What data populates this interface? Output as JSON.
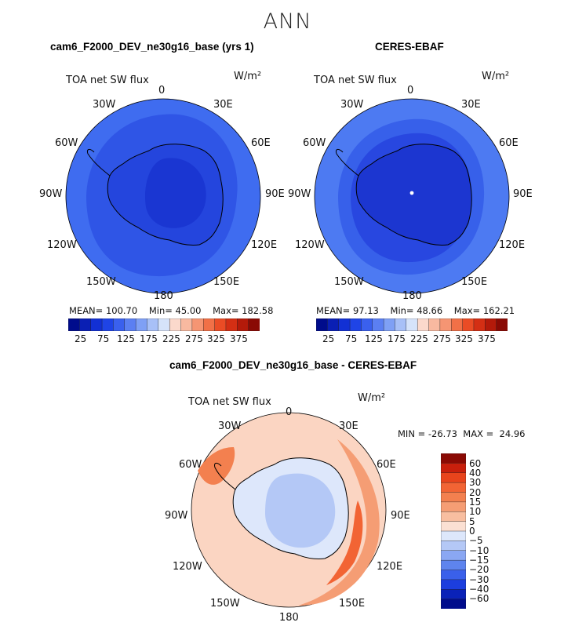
{
  "figure": {
    "season": "ANN"
  },
  "panels": {
    "model": {
      "title": "cam6_F2000_DEV_ne30g16_base (yrs 1)",
      "field_label": "TOA net SW flux",
      "units": "W/m²",
      "stats": {
        "mean_label": "MEAN=",
        "mean": "100.70",
        "min_label": "Min=",
        "min": "45.00",
        "max_label": "Max=",
        "max": "182.58"
      },
      "fill_colors": [
        "#3f6cf0",
        "#2f55e6",
        "#2445dd",
        "#1a36d2"
      ]
    },
    "obs": {
      "title": "CERES-EBAF",
      "field_label": "TOA net SW flux",
      "units": "W/m²",
      "stats": {
        "mean_label": "MEAN=",
        "mean": "97.13",
        "min_label": "Min=",
        "min": "48.66",
        "max_label": "Max=",
        "max": "162.21"
      },
      "fill_colors": [
        "#4d7af2",
        "#3760ea",
        "#2847e0",
        "#1c36d0"
      ]
    },
    "diff": {
      "title": "cam6_F2000_DEV_ne30g16_base - CERES-EBAF",
      "field_label": "TOA net SW flux",
      "units": "W/m²",
      "stats": {
        "min_label": "MIN =",
        "min": "-26.73",
        "max_label": "MAX =",
        "max": "24.96"
      }
    }
  },
  "map_labels": {
    "top": "0",
    "bottom": "180",
    "upper_left": "30W",
    "upper_right": "30E",
    "left_upper": "60W",
    "right_upper": "60E",
    "left": "90W",
    "right": "90E",
    "left_lower": "120W",
    "right_lower": "120E",
    "lower_left": "150W",
    "lower_right": "150E"
  },
  "abs_colorbar": {
    "tick_labels": [
      "25",
      "75",
      "125",
      "175",
      "225",
      "275",
      "325",
      "375"
    ],
    "colors": [
      "#000c8c",
      "#0a1fb4",
      "#1230d4",
      "#1f44e6",
      "#3a60ee",
      "#5b7ff2",
      "#7fa0f5",
      "#a8c0f7",
      "#d6e3fa",
      "#fbd9cc",
      "#f8b9a0",
      "#f59573",
      "#f17047",
      "#ea4c25",
      "#d42f14",
      "#b41a0a",
      "#8a0a04"
    ]
  },
  "diff_colorbar": {
    "tick_labels": [
      "60",
      "40",
      "30",
      "20",
      "15",
      "10",
      "5",
      "0",
      "−5",
      "−10",
      "−15",
      "−20",
      "−30",
      "−40",
      "−60"
    ],
    "colors": [
      "#8a0a04",
      "#c81f0c",
      "#e8441c",
      "#f26434",
      "#f3804f",
      "#f59d74",
      "#f8bea0",
      "#fbe0d3",
      "#dde7fb",
      "#b4c8f6",
      "#8aa7f3",
      "#5e84ee",
      "#3a60ea",
      "#1c3ede",
      "#0a22b8",
      "#000c8c"
    ]
  }
}
